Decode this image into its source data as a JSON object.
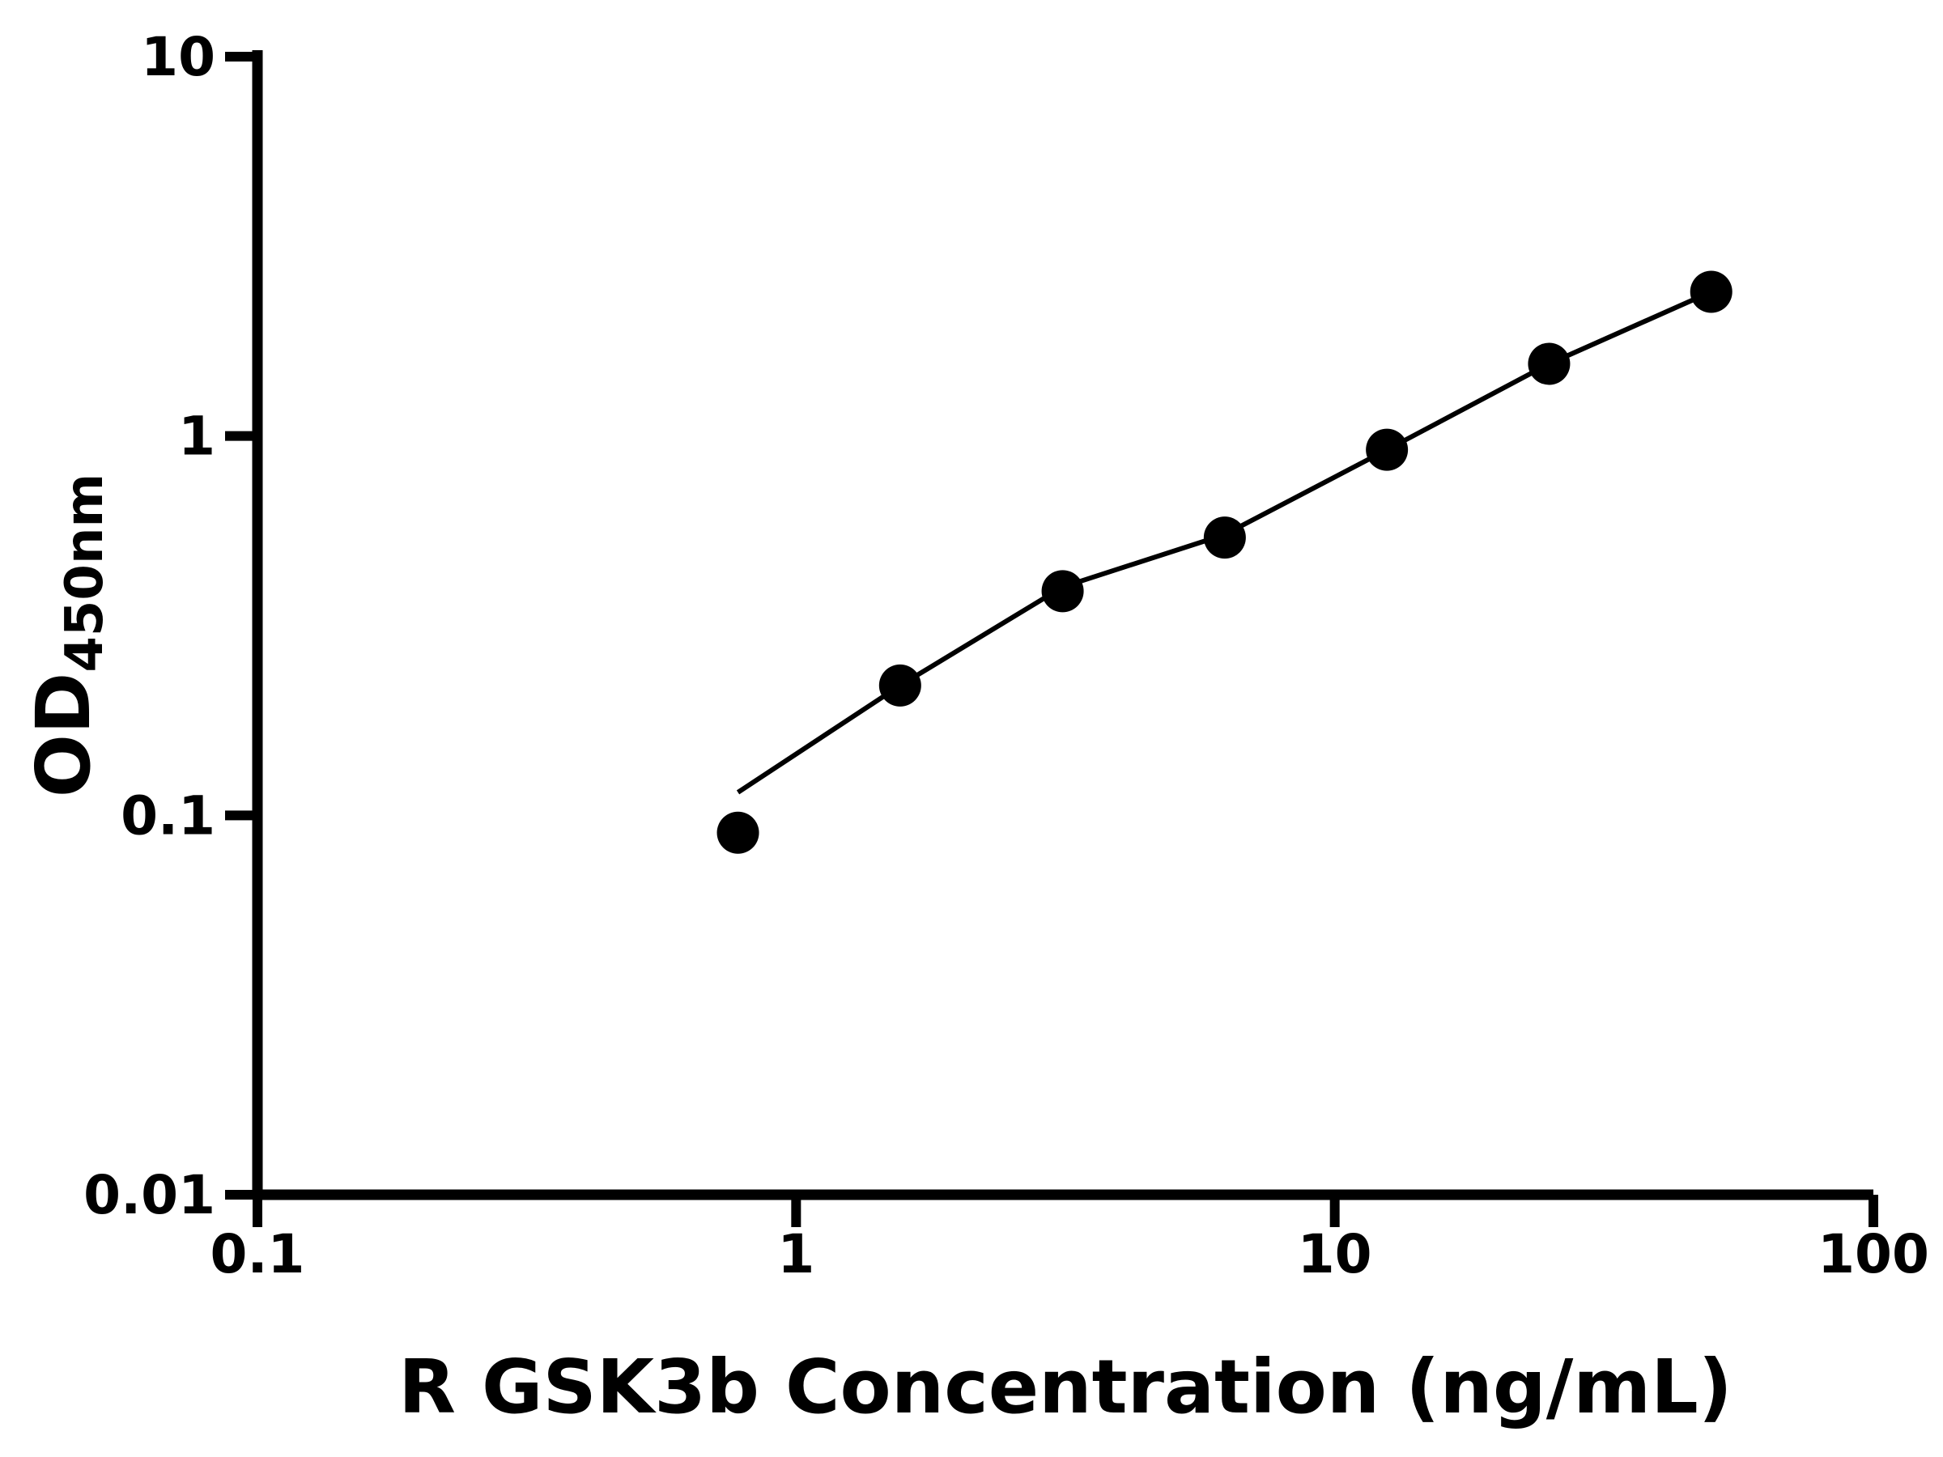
{
  "page": {
    "background": "#ffffff",
    "description": "Log-log standard curve plot of OD450nm versus R GSK3b concentration"
  },
  "chart_data": {
    "type": "scatter",
    "title": "",
    "xlabel": "R GSK3b Concentration (ng/mL)",
    "ylabel_main": "OD",
    "ylabel_sub": "450nm",
    "x_scale": "log",
    "y_scale": "log",
    "xlim": [
      0.1,
      100
    ],
    "ylim": [
      0.01,
      10
    ],
    "x_ticks": [
      0.1,
      1,
      10,
      100
    ],
    "x_tick_labels": [
      "0.1",
      "1",
      "10",
      "100"
    ],
    "y_ticks": [
      0.01,
      0.1,
      1,
      10
    ],
    "y_tick_labels": [
      "0.01",
      "0.1",
      "1",
      "10"
    ],
    "grid": false,
    "legend": "none",
    "series": [
      {
        "name": "R GSK3b standard curve",
        "marker": "filled-circle",
        "points": [
          {
            "x": 0.78,
            "y": 0.09
          },
          {
            "x": 1.56,
            "y": 0.22
          },
          {
            "x": 3.125,
            "y": 0.39
          },
          {
            "x": 6.25,
            "y": 0.54
          },
          {
            "x": 12.5,
            "y": 0.92
          },
          {
            "x": 25,
            "y": 1.55
          },
          {
            "x": 50,
            "y": 2.4
          }
        ]
      }
    ],
    "fit_line": [
      {
        "x": 0.78,
        "y": 0.115
      },
      {
        "x": 1.56,
        "y": 0.22
      },
      {
        "x": 3.125,
        "y": 0.4
      },
      {
        "x": 6.25,
        "y": 0.55
      },
      {
        "x": 12.5,
        "y": 0.92
      },
      {
        "x": 25,
        "y": 1.55
      },
      {
        "x": 50,
        "y": 2.4
      }
    ],
    "colors": {
      "axis": "#000000",
      "points": "#000000",
      "line": "#000000",
      "background": "#ffffff"
    }
  }
}
